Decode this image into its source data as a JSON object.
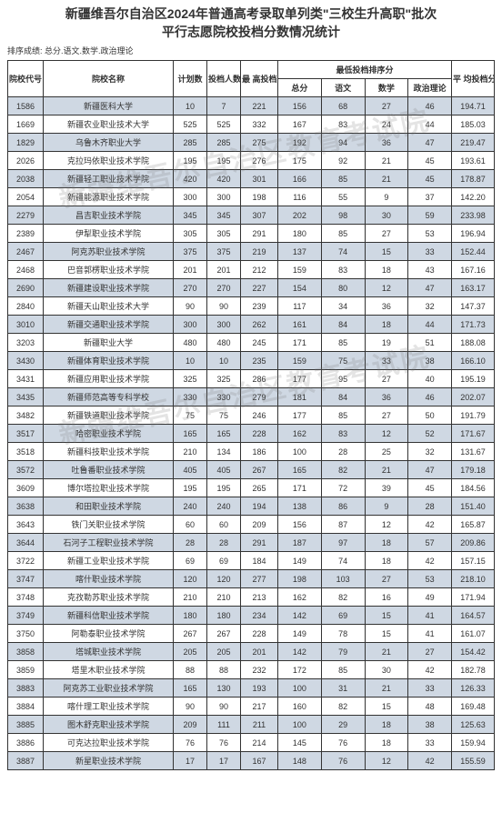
{
  "title_line1": "新疆维吾尔自治区2024年普通高考录取单列类\"三校生升高职\"批次",
  "title_line2": "平行志愿院校投档分数情况统计",
  "sort_info": "排序成绩: 总分.语文.数学.政治理论",
  "watermark": "新疆维吾尔自治区教育考试院",
  "headers": {
    "code": "院校代号",
    "name": "院校名称",
    "plan": "计划数",
    "apply": "投档人数",
    "max": "最 高投档分",
    "min_section": "最低投档排序分",
    "total": "总分",
    "yuwen": "语文",
    "shuxue": "数学",
    "zhengzhi": "政治理论",
    "avg": "平 均投档分"
  },
  "rows": [
    {
      "code": "1586",
      "name": "新疆医科大学",
      "plan": "10",
      "apply": "7",
      "max": "221",
      "total": "156",
      "yw": "68",
      "sx": "27",
      "zz": "46",
      "avg": "194.71"
    },
    {
      "code": "1669",
      "name": "新疆农业职业技术大学",
      "plan": "525",
      "apply": "525",
      "max": "332",
      "total": "167",
      "yw": "83",
      "sx": "24",
      "zz": "44",
      "avg": "185.03"
    },
    {
      "code": "1829",
      "name": "乌鲁木齐职业大学",
      "plan": "285",
      "apply": "285",
      "max": "275",
      "total": "192",
      "yw": "94",
      "sx": "36",
      "zz": "47",
      "avg": "219.47"
    },
    {
      "code": "2026",
      "name": "克拉玛依职业技术学院",
      "plan": "195",
      "apply": "195",
      "max": "276",
      "total": "175",
      "yw": "92",
      "sx": "21",
      "zz": "45",
      "avg": "193.61"
    },
    {
      "code": "2038",
      "name": "新疆轻工职业技术学院",
      "plan": "420",
      "apply": "420",
      "max": "301",
      "total": "166",
      "yw": "85",
      "sx": "21",
      "zz": "45",
      "avg": "178.87"
    },
    {
      "code": "2054",
      "name": "新疆能源职业技术学院",
      "plan": "300",
      "apply": "300",
      "max": "198",
      "total": "116",
      "yw": "55",
      "sx": "9",
      "zz": "37",
      "avg": "142.20"
    },
    {
      "code": "2279",
      "name": "昌吉职业技术学院",
      "plan": "345",
      "apply": "345",
      "max": "307",
      "total": "202",
      "yw": "98",
      "sx": "30",
      "zz": "59",
      "avg": "233.98"
    },
    {
      "code": "2389",
      "name": "伊犁职业技术学院",
      "plan": "305",
      "apply": "305",
      "max": "291",
      "total": "180",
      "yw": "85",
      "sx": "27",
      "zz": "53",
      "avg": "196.94"
    },
    {
      "code": "2467",
      "name": "阿克苏职业技术学院",
      "plan": "375",
      "apply": "375",
      "max": "219",
      "total": "137",
      "yw": "74",
      "sx": "15",
      "zz": "33",
      "avg": "152.44"
    },
    {
      "code": "2468",
      "name": "巴音郭楞职业技术学院",
      "plan": "201",
      "apply": "201",
      "max": "212",
      "total": "159",
      "yw": "83",
      "sx": "18",
      "zz": "43",
      "avg": "167.16"
    },
    {
      "code": "2690",
      "name": "新疆建设职业技术学院",
      "plan": "270",
      "apply": "270",
      "max": "227",
      "total": "154",
      "yw": "80",
      "sx": "12",
      "zz": "47",
      "avg": "163.17"
    },
    {
      "code": "2840",
      "name": "新疆天山职业技术大学",
      "plan": "90",
      "apply": "90",
      "max": "239",
      "total": "117",
      "yw": "34",
      "sx": "36",
      "zz": "32",
      "avg": "147.37"
    },
    {
      "code": "3010",
      "name": "新疆交通职业技术学院",
      "plan": "300",
      "apply": "300",
      "max": "262",
      "total": "161",
      "yw": "84",
      "sx": "18",
      "zz": "44",
      "avg": "171.73"
    },
    {
      "code": "3203",
      "name": "新疆职业大学",
      "plan": "480",
      "apply": "480",
      "max": "245",
      "total": "171",
      "yw": "85",
      "sx": "19",
      "zz": "51",
      "avg": "188.08"
    },
    {
      "code": "3430",
      "name": "新疆体育职业技术学院",
      "plan": "10",
      "apply": "10",
      "max": "235",
      "total": "159",
      "yw": "75",
      "sx": "33",
      "zz": "38",
      "avg": "166.10"
    },
    {
      "code": "3431",
      "name": "新疆应用职业技术学院",
      "plan": "325",
      "apply": "325",
      "max": "286",
      "total": "177",
      "yw": "95",
      "sx": "27",
      "zz": "40",
      "avg": "195.19"
    },
    {
      "code": "3435",
      "name": "新疆师范高等专科学校",
      "plan": "330",
      "apply": "330",
      "max": "279",
      "total": "181",
      "yw": "84",
      "sx": "36",
      "zz": "46",
      "avg": "202.07"
    },
    {
      "code": "3482",
      "name": "新疆铁道职业技术学院",
      "plan": "75",
      "apply": "75",
      "max": "246",
      "total": "177",
      "yw": "85",
      "sx": "27",
      "zz": "50",
      "avg": "191.79"
    },
    {
      "code": "3517",
      "name": "哈密职业技术学院",
      "plan": "165",
      "apply": "165",
      "max": "228",
      "total": "162",
      "yw": "83",
      "sx": "12",
      "zz": "52",
      "avg": "171.67"
    },
    {
      "code": "3518",
      "name": "新疆科技职业技术学院",
      "plan": "210",
      "apply": "134",
      "max": "186",
      "total": "100",
      "yw": "28",
      "sx": "25",
      "zz": "32",
      "avg": "131.67"
    },
    {
      "code": "3572",
      "name": "吐鲁番职业技术学院",
      "plan": "405",
      "apply": "405",
      "max": "267",
      "total": "165",
      "yw": "82",
      "sx": "21",
      "zz": "47",
      "avg": "179.18"
    },
    {
      "code": "3609",
      "name": "博尔塔拉职业技术学院",
      "plan": "195",
      "apply": "195",
      "max": "265",
      "total": "171",
      "yw": "72",
      "sx": "39",
      "zz": "45",
      "avg": "184.56"
    },
    {
      "code": "3638",
      "name": "和田职业技术学院",
      "plan": "240",
      "apply": "240",
      "max": "194",
      "total": "138",
      "yw": "86",
      "sx": "9",
      "zz": "28",
      "avg": "151.40"
    },
    {
      "code": "3643",
      "name": "铁门关职业技术学院",
      "plan": "60",
      "apply": "60",
      "max": "209",
      "total": "156",
      "yw": "87",
      "sx": "12",
      "zz": "42",
      "avg": "165.87"
    },
    {
      "code": "3644",
      "name": "石河子工程职业技术学院",
      "plan": "28",
      "apply": "28",
      "max": "291",
      "total": "187",
      "yw": "97",
      "sx": "18",
      "zz": "57",
      "avg": "209.86"
    },
    {
      "code": "3722",
      "name": "新疆工业职业技术学院",
      "plan": "69",
      "apply": "69",
      "max": "184",
      "total": "149",
      "yw": "74",
      "sx": "18",
      "zz": "42",
      "avg": "157.15"
    },
    {
      "code": "3747",
      "name": "喀什职业技术学院",
      "plan": "120",
      "apply": "120",
      "max": "277",
      "total": "198",
      "yw": "103",
      "sx": "27",
      "zz": "53",
      "avg": "218.10"
    },
    {
      "code": "3748",
      "name": "克孜勒苏职业技术学院",
      "plan": "210",
      "apply": "210",
      "max": "213",
      "total": "162",
      "yw": "82",
      "sx": "16",
      "zz": "49",
      "avg": "171.94"
    },
    {
      "code": "3749",
      "name": "新疆科信职业技术学院",
      "plan": "180",
      "apply": "180",
      "max": "234",
      "total": "142",
      "yw": "69",
      "sx": "15",
      "zz": "41",
      "avg": "164.57"
    },
    {
      "code": "3750",
      "name": "阿勒泰职业技术学院",
      "plan": "267",
      "apply": "267",
      "max": "228",
      "total": "149",
      "yw": "78",
      "sx": "15",
      "zz": "41",
      "avg": "161.07"
    },
    {
      "code": "3858",
      "name": "塔城职业技术学院",
      "plan": "205",
      "apply": "205",
      "max": "201",
      "total": "142",
      "yw": "79",
      "sx": "21",
      "zz": "27",
      "avg": "154.42"
    },
    {
      "code": "3859",
      "name": "塔里木职业技术学院",
      "plan": "88",
      "apply": "88",
      "max": "232",
      "total": "172",
      "yw": "85",
      "sx": "30",
      "zz": "42",
      "avg": "182.78"
    },
    {
      "code": "3883",
      "name": "阿克苏工业职业技术学院",
      "plan": "165",
      "apply": "130",
      "max": "193",
      "total": "100",
      "yw": "31",
      "sx": "21",
      "zz": "33",
      "avg": "126.33"
    },
    {
      "code": "3884",
      "name": "喀什理工职业技术学院",
      "plan": "90",
      "apply": "90",
      "max": "217",
      "total": "160",
      "yw": "82",
      "sx": "15",
      "zz": "48",
      "avg": "169.48"
    },
    {
      "code": "3885",
      "name": "图木舒克职业技术学院",
      "plan": "209",
      "apply": "111",
      "max": "211",
      "total": "100",
      "yw": "29",
      "sx": "18",
      "zz": "38",
      "avg": "125.63"
    },
    {
      "code": "3886",
      "name": "可克达拉职业技术学院",
      "plan": "76",
      "apply": "76",
      "max": "214",
      "total": "145",
      "yw": "76",
      "sx": "18",
      "zz": "33",
      "avg": "159.94"
    },
    {
      "code": "3887",
      "name": "新星职业技术学院",
      "plan": "17",
      "apply": "17",
      "max": "167",
      "total": "148",
      "yw": "76",
      "sx": "12",
      "zz": "42",
      "avg": "155.59"
    }
  ]
}
